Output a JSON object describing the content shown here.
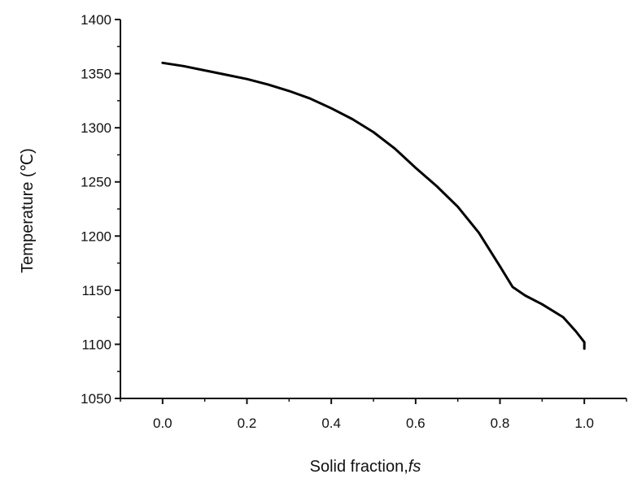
{
  "chart_data": {
    "type": "line",
    "title": "",
    "xlabel": "Solid fraction,",
    "xlabel_italic": "fs",
    "ylabel": "Temperature (℃)",
    "xlim": [
      -0.1,
      1.1
    ],
    "ylim": [
      1050,
      1400
    ],
    "x_ticks": [
      0.0,
      0.2,
      0.4,
      0.6,
      0.8,
      1.0
    ],
    "x_tick_labels": [
      "0.0",
      "0.2",
      "0.4",
      "0.6",
      "0.8",
      "1.0"
    ],
    "y_ticks": [
      1050,
      1100,
      1150,
      1200,
      1250,
      1300,
      1350,
      1400
    ],
    "y_tick_labels": [
      "1050",
      "1100",
      "1150",
      "1200",
      "1250",
      "1300",
      "1350",
      "1400"
    ],
    "grid": false,
    "legend": "none",
    "line_color": "#000000",
    "series": [
      {
        "x": [
          0.0,
          0.05,
          0.1,
          0.15,
          0.2,
          0.25,
          0.3,
          0.35,
          0.4,
          0.45,
          0.5,
          0.55,
          0.6,
          0.65,
          0.7,
          0.75,
          0.8,
          0.83,
          0.86,
          0.9,
          0.95,
          0.98,
          1.0,
          1.0
        ],
        "y": [
          1360,
          1357,
          1353,
          1349,
          1345,
          1340,
          1334,
          1327,
          1318,
          1308,
          1296,
          1281,
          1263,
          1246,
          1227,
          1203,
          1172,
          1153,
          1145,
          1137,
          1125,
          1112,
          1102,
          1096
        ]
      }
    ]
  }
}
